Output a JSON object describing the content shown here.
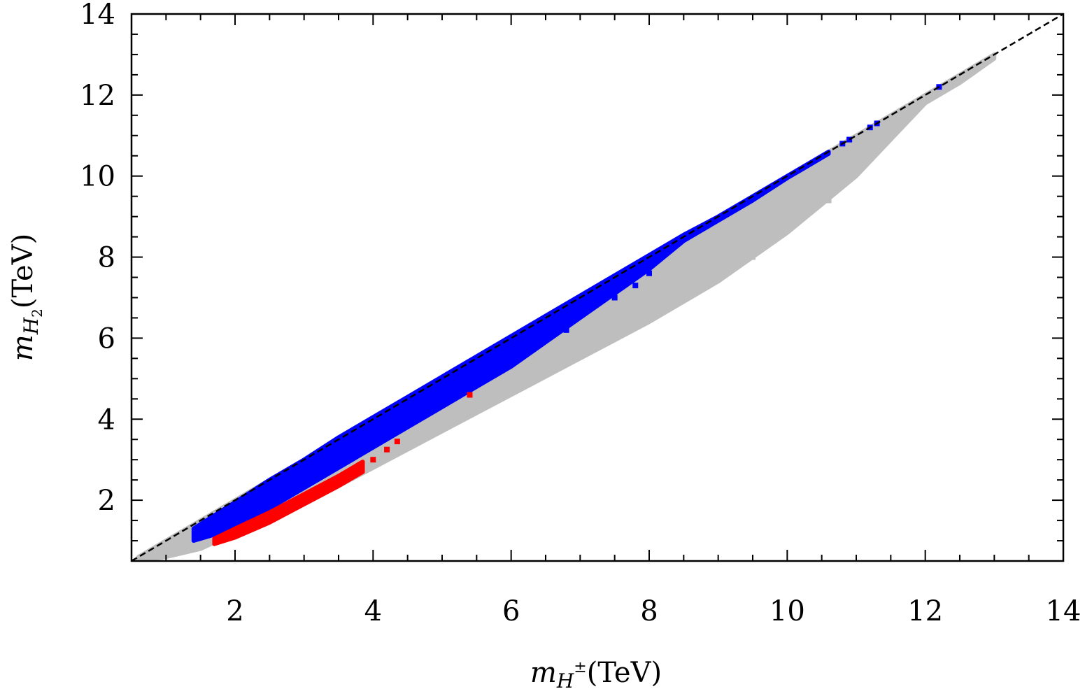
{
  "chart_data": {
    "type": "scatter",
    "title": "",
    "xlabel": {
      "symbol": "m",
      "subscript": "H",
      "superscript": "±",
      "unit": "(TeV)"
    },
    "ylabel": {
      "symbol": "m",
      "subscript": "H",
      "subsubscript": "2",
      "unit": "(TeV)"
    },
    "xlim": [
      0.5,
      14
    ],
    "ylim": [
      0.5,
      14
    ],
    "xticks": [
      2,
      4,
      6,
      8,
      10,
      12,
      14
    ],
    "yticks": [
      2,
      4,
      6,
      8,
      10,
      12,
      14
    ],
    "grid": false,
    "colors": {
      "gray": "#bebebe",
      "blue": "#0000ff",
      "red": "#ff0000",
      "diagonal": "#000000"
    },
    "reference_line": {
      "style": "dashed",
      "x": [
        0.5,
        14
      ],
      "y": [
        0.5,
        14
      ]
    },
    "series": [
      {
        "color": "gray",
        "bands": [
          {
            "x": [
              0.6,
              1.0,
              1.5,
              2.0,
              3.0,
              4.0,
              5.0,
              6.0,
              7.0,
              8.0,
              9.0,
              10.0,
              10.5,
              11.0,
              11.5,
              12.0,
              12.5,
              13.0
            ],
            "hi": [
              0.6,
              1.0,
              1.5,
              2.0,
              3.0,
              4.0,
              5.0,
              6.0,
              7.0,
              8.0,
              9.0,
              10.0,
              10.5,
              11.0,
              11.5,
              12.0,
              12.5,
              13.0
            ],
            "lo": [
              0.5,
              0.6,
              0.8,
              1.2,
              1.9,
              2.8,
              3.7,
              4.6,
              5.5,
              6.4,
              7.4,
              8.6,
              9.3,
              10.0,
              10.9,
              11.8,
              12.3,
              12.9
            ]
          }
        ],
        "points": [
          [
            10.6,
            9.4
          ],
          [
            10.4,
            9.5
          ],
          [
            10.3,
            9.3
          ],
          [
            10.1,
            9.7
          ],
          [
            10.0,
            9.0
          ],
          [
            9.6,
            8.7
          ],
          [
            9.3,
            8.5
          ],
          [
            9.1,
            8.3
          ],
          [
            8.8,
            7.7
          ],
          [
            8.6,
            7.9
          ],
          [
            8.3,
            7.1
          ],
          [
            8.1,
            7.2
          ],
          [
            7.9,
            6.9
          ],
          [
            7.8,
            6.6
          ],
          [
            7.6,
            6.5
          ],
          [
            7.4,
            6.0
          ],
          [
            7.1,
            5.8
          ],
          [
            11.0,
            10.6
          ],
          [
            11.3,
            10.9
          ],
          [
            10.9,
            10.8
          ],
          [
            9.8,
            8.4
          ],
          [
            9.5,
            8.0
          ],
          [
            8.9,
            7.5
          ]
        ]
      },
      {
        "color": "blue",
        "bands": [
          {
            "x": [
              1.4,
              2.0,
              2.5,
              3.0,
              3.5,
              4.0,
              4.5,
              5.0,
              5.5,
              6.0,
              6.5,
              7.0,
              7.5,
              8.0,
              8.5,
              9.0,
              9.5,
              10.0,
              10.5,
              10.6
            ],
            "hi": [
              1.3,
              1.95,
              2.5,
              3.0,
              3.55,
              4.05,
              4.55,
              5.05,
              5.55,
              6.05,
              6.55,
              7.05,
              7.55,
              8.05,
              8.55,
              9.0,
              9.5,
              10.0,
              10.5,
              10.6
            ],
            "lo": [
              1.0,
              1.3,
              1.8,
              2.3,
              2.8,
              3.3,
              3.8,
              4.3,
              4.8,
              5.3,
              5.9,
              6.5,
              7.1,
              7.7,
              8.4,
              8.9,
              9.4,
              9.95,
              10.45,
              10.55
            ]
          }
        ],
        "points": [
          [
            10.8,
            10.8
          ],
          [
            10.9,
            10.9
          ],
          [
            11.2,
            11.2
          ],
          [
            11.3,
            11.3
          ],
          [
            12.2,
            12.2
          ],
          [
            7.5,
            7.0
          ],
          [
            7.8,
            7.3
          ],
          [
            8.0,
            7.6
          ],
          [
            6.8,
            6.2
          ]
        ]
      },
      {
        "color": "red",
        "bands": [
          {
            "x": [
              1.7,
              2.0,
              2.5,
              3.0,
              3.5,
              3.85
            ],
            "hi": [
              1.05,
              1.3,
              1.7,
              2.15,
              2.6,
              2.95
            ],
            "lo": [
              0.92,
              1.08,
              1.45,
              1.9,
              2.35,
              2.7
            ]
          }
        ],
        "points": [
          [
            4.0,
            3.0
          ],
          [
            4.2,
            3.25
          ],
          [
            4.35,
            3.45
          ],
          [
            5.4,
            4.6
          ]
        ]
      }
    ]
  }
}
